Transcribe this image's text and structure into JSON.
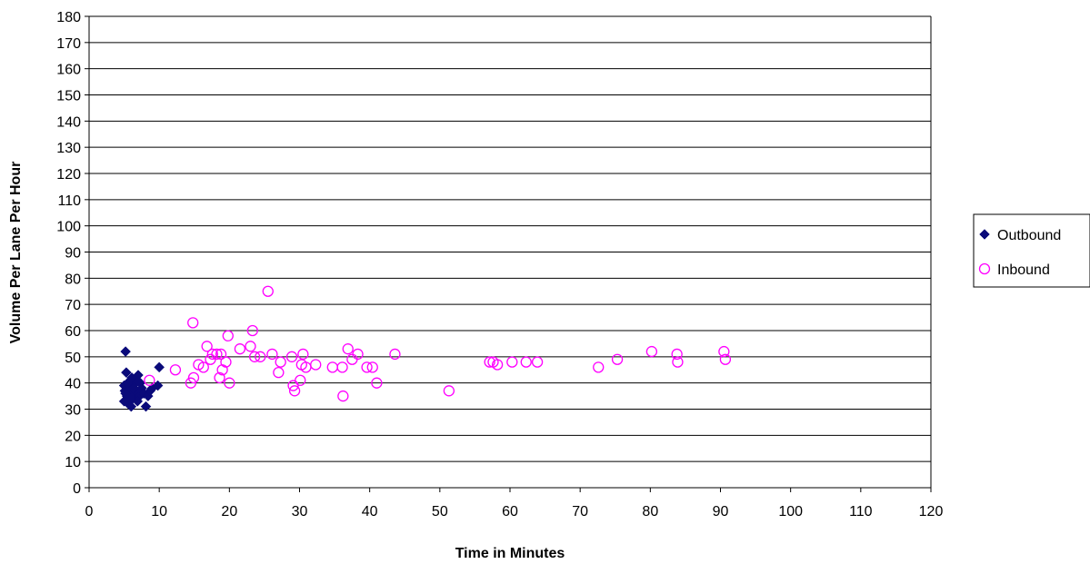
{
  "chart_data": {
    "type": "scatter",
    "title": "",
    "xlabel": "Time in Minutes",
    "ylabel": "Volume Per Lane Per Hour",
    "xlim": [
      0,
      120
    ],
    "ylim": [
      0,
      180
    ],
    "xticks": [
      0,
      10,
      20,
      30,
      40,
      50,
      60,
      70,
      80,
      90,
      100,
      110,
      120
    ],
    "yticks": [
      0,
      10,
      20,
      30,
      40,
      50,
      60,
      70,
      80,
      90,
      100,
      110,
      120,
      130,
      140,
      150,
      160,
      170,
      180
    ],
    "grid": "horizontal",
    "legend_position": "right",
    "series": [
      {
        "name": "Outbound",
        "marker": "diamond",
        "color": "#0a0a7a",
        "points": [
          [
            5.2,
            52
          ],
          [
            5.3,
            44
          ],
          [
            5.0,
            39
          ],
          [
            5.1,
            37
          ],
          [
            5.4,
            35
          ],
          [
            5.0,
            33
          ],
          [
            5.6,
            32
          ],
          [
            6.0,
            31
          ],
          [
            6.2,
            34
          ],
          [
            6.5,
            36
          ],
          [
            5.8,
            38
          ],
          [
            6.3,
            39
          ],
          [
            6.8,
            41
          ],
          [
            7.0,
            43
          ],
          [
            6.6,
            37
          ],
          [
            7.2,
            35
          ],
          [
            7.5,
            38
          ],
          [
            7.8,
            36
          ],
          [
            8.1,
            31
          ],
          [
            8.4,
            35
          ],
          [
            8.7,
            37
          ],
          [
            9.0,
            38
          ],
          [
            9.8,
            39
          ],
          [
            10.0,
            46
          ],
          [
            5.5,
            40
          ],
          [
            6.1,
            42
          ],
          [
            7.3,
            40
          ],
          [
            5.9,
            35
          ],
          [
            6.9,
            33
          ],
          [
            5.2,
            36
          ],
          [
            5.7,
            34
          ],
          [
            6.4,
            38
          ]
        ]
      },
      {
        "name": "Inbound",
        "marker": "circle",
        "color": "#ff00ff",
        "points": [
          [
            8.6,
            41
          ],
          [
            12.3,
            45
          ],
          [
            14.5,
            40
          ],
          [
            14.8,
            63
          ],
          [
            14.9,
            42
          ],
          [
            15.6,
            47
          ],
          [
            16.3,
            46
          ],
          [
            16.8,
            54
          ],
          [
            17.3,
            49
          ],
          [
            17.6,
            51
          ],
          [
            18.2,
            51
          ],
          [
            18.6,
            42
          ],
          [
            18.8,
            51
          ],
          [
            19.0,
            45
          ],
          [
            19.5,
            48
          ],
          [
            19.8,
            58
          ],
          [
            20.0,
            40
          ],
          [
            21.5,
            53
          ],
          [
            23.0,
            54
          ],
          [
            23.3,
            60
          ],
          [
            23.6,
            50
          ],
          [
            24.4,
            50
          ],
          [
            25.5,
            75
          ],
          [
            26.1,
            51
          ],
          [
            27.0,
            44
          ],
          [
            27.3,
            48
          ],
          [
            28.9,
            50
          ],
          [
            29.1,
            39
          ],
          [
            29.3,
            37
          ],
          [
            30.1,
            41
          ],
          [
            30.3,
            47
          ],
          [
            30.5,
            51
          ],
          [
            30.9,
            46
          ],
          [
            32.3,
            47
          ],
          [
            34.7,
            46
          ],
          [
            36.1,
            46
          ],
          [
            36.2,
            35
          ],
          [
            36.9,
            53
          ],
          [
            37.5,
            49
          ],
          [
            38.3,
            51
          ],
          [
            39.6,
            46
          ],
          [
            40.4,
            46
          ],
          [
            41.0,
            40
          ],
          [
            43.6,
            51
          ],
          [
            51.3,
            37
          ],
          [
            57.1,
            48
          ],
          [
            57.6,
            48
          ],
          [
            58.2,
            47
          ],
          [
            60.3,
            48
          ],
          [
            62.3,
            48
          ],
          [
            63.9,
            48
          ],
          [
            72.6,
            46
          ],
          [
            75.3,
            49
          ],
          [
            80.2,
            52
          ],
          [
            83.8,
            51
          ],
          [
            83.9,
            48
          ],
          [
            90.5,
            52
          ],
          [
            90.7,
            49
          ]
        ]
      }
    ]
  }
}
